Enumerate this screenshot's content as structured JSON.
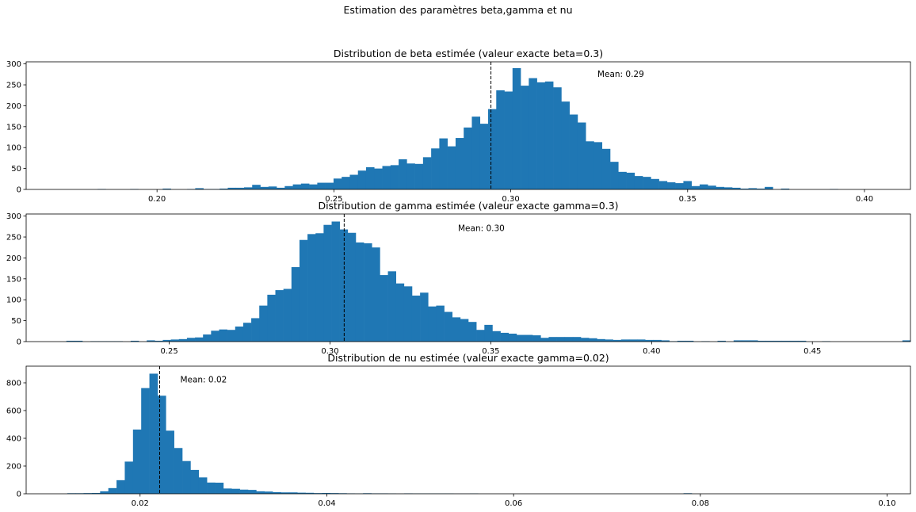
{
  "figure": {
    "suptitle": "Estimation des paramètres beta,gamma et nu",
    "bar_color": "#1f77b4",
    "mean_line_color": "#000000"
  },
  "chart_data": [
    {
      "type": "bar",
      "title": "Distribution de beta estimée (valeur exacte beta=0.3)",
      "xlabel": "",
      "ylabel": "",
      "xlim": [
        0.163,
        0.413
      ],
      "ylim": [
        0,
        305
      ],
      "xticks": [
        0.2,
        0.25,
        0.3,
        0.35,
        0.4
      ],
      "xtick_labels": [
        "0.20",
        "0.25",
        "0.30",
        "0.35",
        "0.40"
      ],
      "yticks": [
        0,
        50,
        100,
        150,
        200,
        250,
        300
      ],
      "ytick_labels": [
        "0",
        "50",
        "100",
        "150",
        "200",
        "250",
        "300"
      ],
      "bin_start": 0.174,
      "bin_width": 0.0023,
      "values": [
        0,
        0,
        0,
        0,
        1,
        0,
        0,
        0,
        1,
        0,
        0,
        0,
        2,
        0,
        0,
        1,
        3,
        1,
        1,
        2,
        4,
        4,
        5,
        11,
        6,
        7,
        4,
        8,
        12,
        14,
        12,
        16,
        16,
        26,
        30,
        35,
        45,
        53,
        50,
        56,
        58,
        72,
        62,
        61,
        77,
        98,
        122,
        103,
        123,
        148,
        174,
        157,
        192,
        237,
        234,
        290,
        248,
        266,
        256,
        258,
        244,
        210,
        179,
        160,
        115,
        113,
        97,
        66,
        42,
        40,
        32,
        30,
        25,
        20,
        17,
        15,
        20,
        8,
        12,
        9,
        6,
        5,
        4,
        2,
        3,
        2,
        6,
        0,
        2,
        0,
        0,
        0,
        0,
        0,
        1,
        0,
        0,
        0,
        0,
        0,
        0
      ],
      "mean_line": 0.2944,
      "annotation": "Mean: 0.29",
      "annotation_x": 0.3245,
      "annotation_y": 277
    },
    {
      "type": "bar",
      "title": "Distribution de gamma estimée (valeur exacte gamma=0.3)",
      "xlabel": "",
      "ylabel": "",
      "xlim": [
        0.2055,
        0.4805
      ],
      "ylim": [
        0,
        305
      ],
      "xticks": [
        0.25,
        0.3,
        0.35,
        0.4,
        0.45
      ],
      "xtick_labels": [
        "0.25",
        "0.30",
        "0.35",
        "0.40",
        "0.45"
      ],
      "yticks": [
        0,
        50,
        100,
        150,
        200,
        250,
        300
      ],
      "ytick_labels": [
        "0",
        "50",
        "100",
        "150",
        "200",
        "250",
        "300"
      ],
      "bin_start": 0.218,
      "bin_width": 0.0025,
      "values": [
        2,
        2,
        0,
        1,
        1,
        1,
        1,
        0,
        2,
        0,
        3,
        2,
        4,
        5,
        6,
        9,
        10,
        17,
        26,
        29,
        28,
        36,
        45,
        56,
        86,
        112,
        123,
        126,
        178,
        243,
        257,
        259,
        279,
        287,
        268,
        260,
        237,
        235,
        225,
        159,
        168,
        139,
        132,
        110,
        117,
        84,
        86,
        71,
        58,
        54,
        47,
        28,
        40,
        25,
        21,
        19,
        16,
        16,
        15,
        9,
        11,
        11,
        11,
        11,
        9,
        8,
        6,
        5,
        4,
        5,
        5,
        5,
        4,
        4,
        3,
        1,
        2,
        2,
        0,
        1,
        0,
        2,
        0,
        3,
        3,
        3,
        2,
        2,
        2,
        2,
        2,
        2,
        0,
        0,
        1,
        0,
        0,
        0,
        0,
        0,
        0,
        0,
        0,
        0,
        3,
        0,
        0
      ],
      "mean_line": 0.3044,
      "annotation": "Mean: 0.30",
      "annotation_x": 0.3398,
      "annotation_y": 272
    },
    {
      "type": "bar",
      "title": "Distribution de nu estimée (valeur exacte gamma=0.02)",
      "xlabel": "",
      "ylabel": "",
      "xlim": [
        0.0078,
        0.1025
      ],
      "ylim": [
        0,
        920
      ],
      "xticks": [
        0.02,
        0.04,
        0.06,
        0.08,
        0.1
      ],
      "xtick_labels": [
        "0.02",
        "0.04",
        "0.06",
        "0.08",
        "0.10"
      ],
      "yticks": [
        0,
        200,
        400,
        600,
        800
      ],
      "ytick_labels": [
        "0",
        "200",
        "400",
        "600",
        "800"
      ],
      "bin_start": 0.0122,
      "bin_width": 0.00088,
      "values": [
        4,
        4,
        5,
        6,
        18,
        41,
        98,
        232,
        463,
        762,
        866,
        707,
        455,
        330,
        236,
        172,
        118,
        81,
        80,
        38,
        36,
        30,
        28,
        18,
        16,
        12,
        10,
        10,
        8,
        7,
        5,
        6,
        5,
        4,
        3,
        2,
        4,
        3,
        3,
        2,
        1,
        3,
        2,
        2,
        2,
        2,
        2,
        1,
        1,
        2,
        0,
        0,
        0,
        0,
        0,
        0,
        0,
        0,
        0,
        0,
        0,
        0,
        0,
        0,
        0,
        0,
        0,
        0,
        0,
        0,
        0,
        0,
        0,
        0,
        0,
        4,
        0,
        0,
        0,
        0,
        0,
        0,
        0,
        0,
        0,
        0,
        0,
        0,
        0,
        0,
        0,
        0,
        0,
        0,
        0,
        0,
        0,
        0
      ],
      "mean_line": 0.0221,
      "annotation": "Mean: 0.02",
      "annotation_x": 0.0243,
      "annotation_y": 825
    }
  ]
}
